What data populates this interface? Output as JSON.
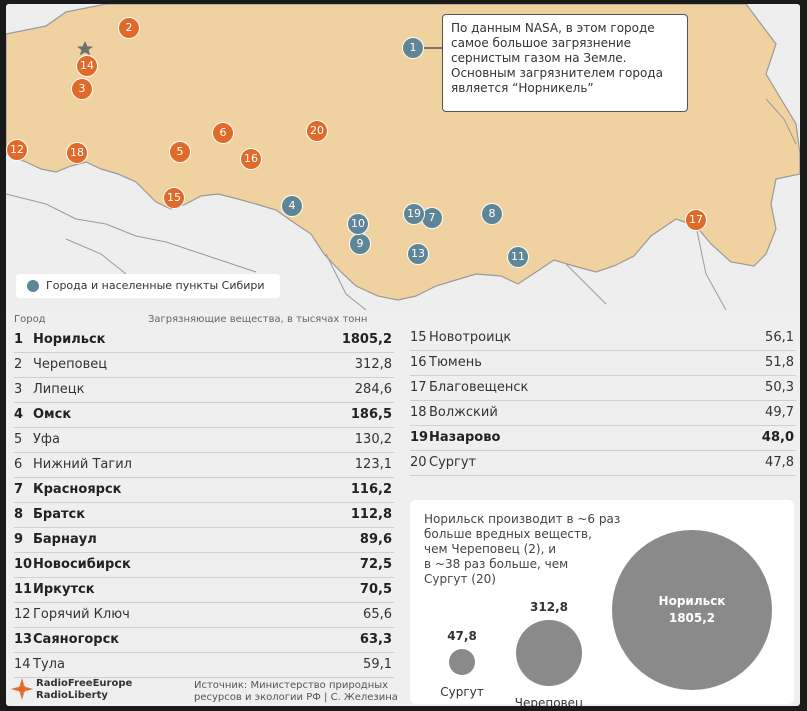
{
  "map": {
    "colors": {
      "land": "#efd2a0",
      "border": "#9a9a9a",
      "sea": "#eeeeee",
      "orange_marker": "#e06a2a",
      "siberia_marker": "#5f8696"
    },
    "callout": {
      "marker": "1",
      "lines": [
        "По данным NASA, в этом городе",
        "самое большое загрязнение",
        "сернистым газом на Земле.",
        "Основным загрязнителем города",
        "является “Норникель”"
      ]
    },
    "legend_label": "Города и населенные пункты Сибири",
    "markers": [
      {
        "n": "1",
        "type": "siberia"
      },
      {
        "n": "2",
        "type": "other"
      },
      {
        "n": "3",
        "type": "other"
      },
      {
        "n": "4",
        "type": "siberia"
      },
      {
        "n": "5",
        "type": "other"
      },
      {
        "n": "6",
        "type": "other"
      },
      {
        "n": "7",
        "type": "siberia"
      },
      {
        "n": "8",
        "type": "siberia"
      },
      {
        "n": "9",
        "type": "siberia"
      },
      {
        "n": "10",
        "type": "siberia"
      },
      {
        "n": "11",
        "type": "siberia"
      },
      {
        "n": "12",
        "type": "other"
      },
      {
        "n": "13",
        "type": "siberia"
      },
      {
        "n": "14",
        "type": "other"
      },
      {
        "n": "15",
        "type": "other"
      },
      {
        "n": "16",
        "type": "other"
      },
      {
        "n": "17",
        "type": "other"
      },
      {
        "n": "18",
        "type": "other"
      },
      {
        "n": "19",
        "type": "siberia"
      },
      {
        "n": "20",
        "type": "other"
      }
    ]
  },
  "table": {
    "header_city": "Город",
    "header_value": "Загрязняющие вещества, в тысячах тонн",
    "rows_left": [
      {
        "n": "1",
        "city": "Норильск",
        "value": "1805,2",
        "siberia": true
      },
      {
        "n": "2",
        "city": "Череповец",
        "value": "312,8",
        "siberia": false
      },
      {
        "n": "3",
        "city": "Липецк",
        "value": "284,6",
        "siberia": false
      },
      {
        "n": "4",
        "city": "Омск",
        "value": "186,5",
        "siberia": true
      },
      {
        "n": "5",
        "city": "Уфа",
        "value": "130,2",
        "siberia": false
      },
      {
        "n": "6",
        "city": "Нижний Тагил",
        "value": "123,1",
        "siberia": false
      },
      {
        "n": "7",
        "city": "Красноярск",
        "value": "116,2",
        "siberia": true
      },
      {
        "n": "8",
        "city": "Братск",
        "value": "112,8",
        "siberia": true
      },
      {
        "n": "9",
        "city": "Барнаул",
        "value": "89,6",
        "siberia": true
      },
      {
        "n": "10",
        "city": "Новосибирск",
        "value": "72,5",
        "siberia": true
      },
      {
        "n": "11",
        "city": "Иркутск",
        "value": "70,5",
        "siberia": true
      },
      {
        "n": "12",
        "city": "Горячий Ключ",
        "value": "65,6",
        "siberia": false
      },
      {
        "n": "13",
        "city": "Саяногорск",
        "value": "63,3",
        "siberia": true
      },
      {
        "n": "14",
        "city": "Тула",
        "value": "59,1",
        "siberia": false
      }
    ],
    "rows_right": [
      {
        "n": "15",
        "city": "Новотроицк",
        "value": "56,1",
        "siberia": false
      },
      {
        "n": "16",
        "city": "Тюмень",
        "value": "51,8",
        "siberia": false
      },
      {
        "n": "17",
        "city": "Благовещенск",
        "value": "50,3",
        "siberia": false
      },
      {
        "n": "18",
        "city": "Волжский",
        "value": "49,7",
        "siberia": false
      },
      {
        "n": "19",
        "city": "Назарово",
        "value": "48,0",
        "siberia": true
      },
      {
        "n": "20",
        "city": "Сургут",
        "value": "47,8",
        "siberia": false
      }
    ]
  },
  "comparison": {
    "text_lines": [
      "Норильск производит в ~6 раз",
      "больше вредных веществ,",
      "чем Череповец (2), и",
      "в ~38 раз больше, чем",
      "Сургут (20)"
    ],
    "bubbles": [
      {
        "city": "Сургут",
        "value": "47,8",
        "amount": 47.8
      },
      {
        "city": "Череповец",
        "value": "312,8",
        "amount": 312.8
      },
      {
        "city": "Норильск",
        "value": "1805,2",
        "amount": 1805.2
      }
    ]
  },
  "footer": {
    "logo_lines": [
      "RadioFreeEurope",
      "RadioLiberty"
    ],
    "source_lines": [
      "Источник: Министерство природных",
      "ресурсов и экологии РФ | С. Железина"
    ]
  }
}
